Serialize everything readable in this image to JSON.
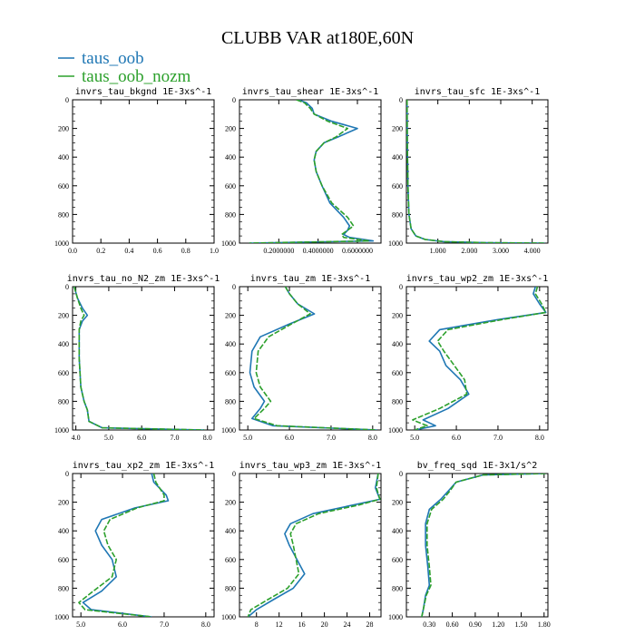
{
  "figure_title": "CLUBB VAR at180E,60N",
  "legend": [
    {
      "label": "taus_oob",
      "color": "#1f77b4"
    },
    {
      "label": "taus_oob_nozm",
      "color": "#2ca02c"
    }
  ],
  "chart_data": [
    {
      "type": "line",
      "title": "invrs_tau_bkgnd   1E-3xs^-1",
      "xlim": [
        0,
        1
      ],
      "xticks": [
        "0.0",
        "0.2",
        "0.4",
        "0.6",
        "0.8",
        "1.0"
      ],
      "xtick_values": [
        0,
        0.2,
        0.4,
        0.6,
        0.8,
        1.0
      ],
      "ylim": [
        1000,
        0
      ],
      "yticks": [
        "0",
        "200",
        "400",
        "600",
        "800",
        "1000"
      ],
      "series": []
    },
    {
      "type": "line",
      "title": "invrs_tau_shear   1E-3xs^-1",
      "xlim": [
        0,
        0.72
      ],
      "xticks": [
        "0.2000000",
        "0.4000000",
        "0.6000000"
      ],
      "xtick_values": [
        0.2,
        0.4,
        0.6
      ],
      "ylim": [
        1000,
        0
      ],
      "yticks": [
        "0",
        "200",
        "400",
        "600",
        "800",
        "1000"
      ],
      "series": [
        {
          "name": "taus_oob",
          "color": "#1f77b4",
          "x": [
            0.3,
            0.34,
            0.37,
            0.38,
            0.47,
            0.6,
            0.5,
            0.43,
            0.39,
            0.38,
            0.39,
            0.42,
            0.46,
            0.53,
            0.56,
            0.55,
            0.53,
            0.56,
            0.68,
            0.05
          ],
          "y": [
            0,
            20,
            60,
            100,
            150,
            200,
            260,
            300,
            360,
            420,
            500,
            600,
            720,
            820,
            880,
            910,
            940,
            960,
            985,
            1000
          ]
        },
        {
          "name": "taus_oob_nozm",
          "color": "#2ca02c",
          "x": [
            0.29,
            0.33,
            0.36,
            0.38,
            0.45,
            0.55,
            0.49,
            0.43,
            0.39,
            0.38,
            0.39,
            0.42,
            0.47,
            0.55,
            0.58,
            0.55,
            0.52,
            0.53,
            0.66,
            0.05
          ],
          "y": [
            0,
            20,
            60,
            100,
            150,
            200,
            260,
            300,
            360,
            420,
            500,
            600,
            720,
            820,
            880,
            910,
            940,
            960,
            985,
            1000
          ]
        }
      ]
    },
    {
      "type": "line",
      "title": "invrs_tau_sfc   1E-3xs^-1",
      "xlim": [
        0,
        4.5
      ],
      "xticks": [
        "1.000",
        "2.000",
        "3.000",
        "4.000"
      ],
      "xtick_values": [
        1,
        2,
        3,
        4
      ],
      "ylim": [
        1000,
        0
      ],
      "yticks": [
        "0",
        "200",
        "400",
        "600",
        "800",
        "1000"
      ],
      "series": [
        {
          "name": "taus_oob",
          "color": "#1f77b4",
          "x": [
            0.02,
            0.03,
            0.05,
            0.08,
            0.15,
            0.3,
            0.6,
            1.2,
            2.5,
            4.4
          ],
          "y": [
            0,
            300,
            600,
            800,
            900,
            950,
            975,
            990,
            997,
            1000
          ]
        },
        {
          "name": "taus_oob_nozm",
          "color": "#2ca02c",
          "x": [
            0.02,
            0.03,
            0.05,
            0.08,
            0.15,
            0.3,
            0.6,
            1.2,
            2.5,
            4.4
          ],
          "y": [
            0,
            300,
            600,
            800,
            900,
            950,
            975,
            990,
            997,
            1000
          ]
        }
      ]
    },
    {
      "type": "line",
      "title": "invrs_tau_no_N2_zm   1E-3xs^-1",
      "xlim": [
        3.9,
        8.2
      ],
      "xticks": [
        "4.0",
        "5.0",
        "6.0",
        "7.0",
        "8.0"
      ],
      "xtick_values": [
        4,
        5,
        6,
        7,
        8
      ],
      "ylim": [
        1000,
        0
      ],
      "yticks": [
        "0",
        "200",
        "400",
        "600",
        "800",
        "1000"
      ],
      "series": [
        {
          "name": "taus_oob",
          "color": "#1f77b4",
          "x": [
            3.95,
            4.05,
            4.2,
            4.35,
            4.2,
            4.1,
            4.1,
            4.15,
            4.25,
            4.35,
            4.4,
            4.8,
            7.9
          ],
          "y": [
            0,
            80,
            150,
            200,
            240,
            300,
            500,
            700,
            800,
            860,
            940,
            985,
            1000
          ]
        },
        {
          "name": "taus_oob_nozm",
          "color": "#2ca02c",
          "x": [
            3.95,
            4.05,
            4.15,
            4.25,
            4.15,
            4.1,
            4.1,
            4.15,
            4.25,
            4.35,
            4.4,
            4.8,
            7.9
          ],
          "y": [
            0,
            80,
            150,
            200,
            240,
            300,
            500,
            700,
            800,
            860,
            940,
            985,
            1000
          ]
        }
      ]
    },
    {
      "type": "line",
      "title": "invrs_tau_zm   1E-3xs^-1",
      "xlim": [
        4.8,
        8.2
      ],
      "xticks": [
        "5.0",
        "6.0",
        "7.0",
        "8.0"
      ],
      "xtick_values": [
        5,
        6,
        7,
        8
      ],
      "ylim": [
        1000,
        0
      ],
      "yticks": [
        "0",
        "200",
        "400",
        "600",
        "800",
        "1000"
      ],
      "series": [
        {
          "name": "taus_oob",
          "color": "#1f77b4",
          "x": [
            5.9,
            6.0,
            6.2,
            6.6,
            6.0,
            5.3,
            5.1,
            5.05,
            5.15,
            5.4,
            5.3,
            5.1,
            5.6,
            8.1
          ],
          "y": [
            0,
            50,
            120,
            190,
            260,
            350,
            450,
            600,
            700,
            800,
            850,
            920,
            970,
            1000
          ]
        },
        {
          "name": "taus_oob_nozm",
          "color": "#2ca02c",
          "x": [
            5.9,
            6.0,
            6.2,
            6.5,
            6.05,
            5.5,
            5.25,
            5.2,
            5.3,
            5.55,
            5.4,
            5.15,
            5.7,
            8.1
          ],
          "y": [
            0,
            50,
            120,
            190,
            260,
            350,
            450,
            600,
            700,
            800,
            850,
            920,
            970,
            1000
          ]
        }
      ]
    },
    {
      "type": "line",
      "title": "invrs_tau_wp2_zm   1E-3xs^-1",
      "xlim": [
        4.8,
        8.2
      ],
      "xticks": [
        "5.0",
        "6.0",
        "7.0",
        "8.0"
      ],
      "xtick_values": [
        5,
        6,
        7,
        8
      ],
      "ylim": [
        1000,
        0
      ],
      "yticks": [
        "0",
        "200",
        "400",
        "600",
        "800",
        "1000"
      ],
      "series": [
        {
          "name": "taus_oob",
          "color": "#1f77b4",
          "x": [
            7.9,
            7.85,
            8.0,
            8.15,
            7.0,
            5.6,
            5.35,
            5.6,
            5.75,
            6.1,
            6.3,
            5.8,
            5.2,
            5.5,
            5.0
          ],
          "y": [
            0,
            50,
            120,
            180,
            230,
            300,
            380,
            450,
            550,
            650,
            750,
            850,
            930,
            970,
            1000
          ]
        },
        {
          "name": "taus_oob_nozm",
          "color": "#2ca02c",
          "x": [
            7.95,
            7.9,
            8.05,
            8.15,
            7.1,
            5.8,
            5.55,
            5.7,
            5.95,
            6.2,
            6.25,
            5.6,
            4.95,
            5.3,
            5.0
          ],
          "y": [
            0,
            50,
            120,
            180,
            230,
            300,
            380,
            450,
            550,
            650,
            750,
            850,
            930,
            970,
            1000
          ]
        }
      ]
    },
    {
      "type": "line",
      "title": "invrs_tau_xp2_zm   1E-3xs^-1",
      "xlim": [
        4.8,
        8.2
      ],
      "xticks": [
        "5.0",
        "6.0",
        "7.0",
        "8.0"
      ],
      "xtick_values": [
        5,
        6,
        7,
        8
      ],
      "ylim": [
        1000,
        0
      ],
      "yticks": [
        "0",
        "200",
        "400",
        "600",
        "800",
        "1000"
      ],
      "series": [
        {
          "name": "taus_oob",
          "color": "#1f77b4",
          "x": [
            6.7,
            6.75,
            7.05,
            7.1,
            6.3,
            5.5,
            5.35,
            5.5,
            5.75,
            5.85,
            5.5,
            5.05,
            5.25,
            6.7
          ],
          "y": [
            0,
            60,
            150,
            190,
            240,
            320,
            400,
            500,
            600,
            720,
            820,
            900,
            950,
            1000
          ]
        },
        {
          "name": "taus_oob_nozm",
          "color": "#2ca02c",
          "x": [
            6.75,
            6.8,
            7.0,
            7.0,
            6.35,
            5.7,
            5.55,
            5.65,
            5.85,
            5.75,
            5.3,
            4.95,
            5.1,
            6.7
          ],
          "y": [
            0,
            60,
            150,
            190,
            240,
            320,
            400,
            500,
            600,
            720,
            820,
            900,
            950,
            1000
          ]
        }
      ]
    },
    {
      "type": "line",
      "title": "invrs_tau_wp3_zm   1E-3xs^-1",
      "xlim": [
        5,
        30
      ],
      "xticks": [
        "8",
        "12",
        "16",
        "20",
        "24",
        "28"
      ],
      "xtick_values": [
        8,
        12,
        16,
        20,
        24,
        28
      ],
      "ylim": [
        1000,
        0
      ],
      "yticks": [
        "0",
        "200",
        "400",
        "600",
        "800",
        "1000"
      ],
      "series": [
        {
          "name": "taus_oob",
          "color": "#1f77b4",
          "x": [
            29.5,
            29.0,
            29.8,
            25.0,
            18.0,
            14.0,
            13.0,
            13.8,
            16.5,
            14.5,
            11.0,
            8.0,
            6.5
          ],
          "y": [
            0,
            100,
            180,
            220,
            280,
            350,
            420,
            500,
            700,
            800,
            880,
            950,
            1000
          ]
        },
        {
          "name": "taus_oob_nozm",
          "color": "#2ca02c",
          "x": [
            29.5,
            29.2,
            29.8,
            26.0,
            19.0,
            15.0,
            14.0,
            14.5,
            15.5,
            13.5,
            10.0,
            7.0,
            6.5
          ],
          "y": [
            0,
            100,
            180,
            220,
            280,
            350,
            420,
            500,
            700,
            800,
            880,
            950,
            1000
          ]
        }
      ]
    },
    {
      "type": "line",
      "title": "bv_freq_sqd   1E-3x1/s^2",
      "xlim": [
        0,
        1.85
      ],
      "xticks": [
        "0.30",
        "0.60",
        "0.90",
        "1.20",
        "1.50",
        "1.80"
      ],
      "xtick_values": [
        0.3,
        0.6,
        0.9,
        1.2,
        1.5,
        1.8
      ],
      "ylim": [
        1000,
        0
      ],
      "yticks": [
        "0",
        "200",
        "400",
        "600",
        "800",
        "1000"
      ],
      "series": [
        {
          "name": "taus_oob",
          "color": "#1f77b4",
          "x": [
            1.82,
            1.0,
            0.65,
            0.55,
            0.45,
            0.3,
            0.25,
            0.25,
            0.28,
            0.3,
            0.25,
            0.22,
            0.2
          ],
          "y": [
            0,
            10,
            60,
            120,
            180,
            250,
            350,
            500,
            650,
            780,
            850,
            950,
            1000
          ]
        },
        {
          "name": "taus_oob_nozm",
          "color": "#2ca02c",
          "x": [
            1.82,
            1.0,
            0.65,
            0.57,
            0.48,
            0.33,
            0.27,
            0.27,
            0.3,
            0.32,
            0.26,
            0.22,
            0.2
          ],
          "y": [
            0,
            10,
            60,
            120,
            180,
            250,
            350,
            500,
            650,
            780,
            850,
            950,
            1000
          ]
        }
      ]
    }
  ]
}
